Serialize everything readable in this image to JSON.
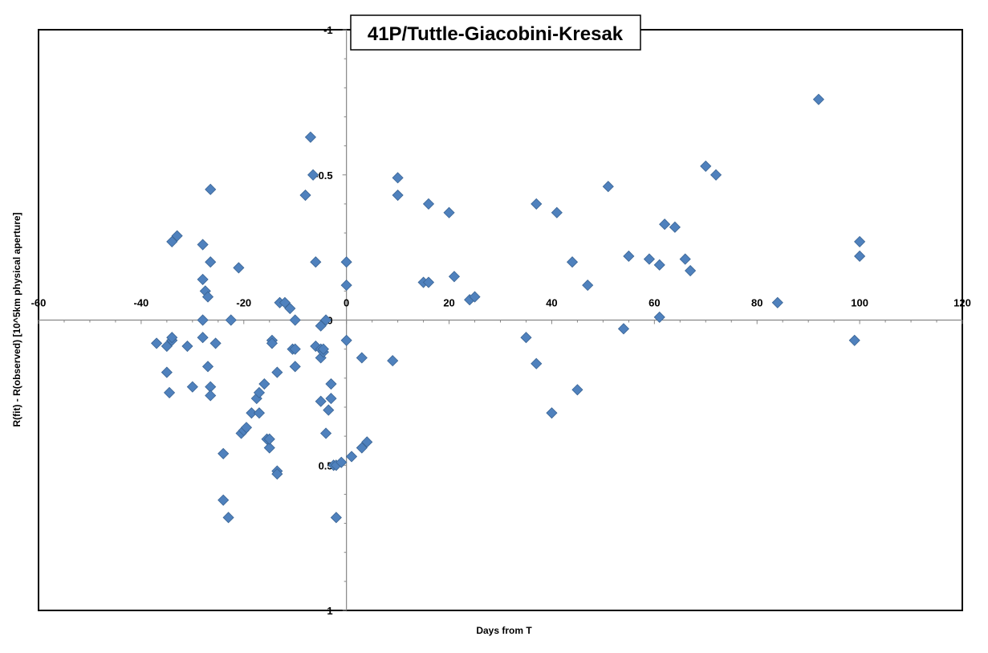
{
  "chart_data": {
    "type": "scatter",
    "title": "41P/Tuttle-Giacobini-Kresak",
    "xlabel": "Days from T",
    "ylabel": "R(fit) - R(observed) [10^5km physical aperture]",
    "xlim": [
      -60,
      120
    ],
    "ylim": [
      -1,
      1
    ],
    "y_inverted": true,
    "x_ticks": [
      -60,
      -40,
      -20,
      0,
      20,
      40,
      60,
      80,
      100,
      120
    ],
    "x_tick_labels": [
      "-60",
      "-40",
      "-20",
      "0",
      "20",
      "40",
      "60",
      "80",
      "100",
      "120"
    ],
    "y_ticks": [
      -1,
      -0.5,
      0,
      0.5,
      1
    ],
    "y_tick_labels": [
      "-1",
      "-0.5",
      "0",
      "0.5",
      "1"
    ],
    "grid": false,
    "legend": "none",
    "marker": "diamond",
    "colors": {
      "marker": "#4f81bd",
      "marker_edge": "#3a6494",
      "axis": "#868686",
      "border": "#000000"
    },
    "series": [
      {
        "x": [
          -37,
          -35,
          -34.5,
          -34,
          -33,
          -34,
          -35,
          -34,
          -31,
          -30,
          -28,
          -28,
          -27.5,
          -27,
          -26.5,
          -26.5,
          -26.5,
          -26.5,
          -28,
          -28,
          -27,
          -25.5,
          -24,
          -21,
          -24,
          -23,
          -22.5,
          -20.5,
          -20,
          -19.5,
          -18.5,
          -17.5,
          -17,
          -17,
          -16,
          -15.5,
          -15,
          -15,
          -14.5,
          -14.5,
          -13.5,
          -13.5,
          -13.5,
          -13,
          -12,
          -11,
          -10.5,
          -10,
          -10,
          -10,
          -8,
          -7,
          -6.5,
          -6,
          -6,
          -5,
          -5,
          -5,
          -5,
          -4.5,
          -4.5,
          -4,
          -4,
          -3.5,
          -3,
          -3,
          -2.5,
          -2,
          -2,
          -1,
          0,
          0,
          0,
          1,
          3,
          3,
          4,
          9,
          10,
          10,
          15,
          16,
          16,
          20,
          21,
          24,
          25,
          35,
          37,
          37,
          40,
          41,
          44,
          45,
          47,
          51,
          54,
          55,
          59,
          61,
          61,
          62,
          64,
          66,
          67,
          70,
          72,
          84,
          92,
          99,
          100,
          100
        ],
        "y": [
          0.08,
          0.18,
          0.25,
          0.07,
          -0.29,
          -0.27,
          0.09,
          0.06,
          0.09,
          0.23,
          -0.26,
          0.06,
          -0.1,
          -0.08,
          -0.45,
          -0.2,
          0.23,
          0.26,
          -0.14,
          0,
          0.16,
          0.08,
          0.46,
          -0.18,
          0.62,
          0.68,
          0,
          0.39,
          0.38,
          0.37,
          0.32,
          0.27,
          0.25,
          0.32,
          0.22,
          0.41,
          0.44,
          0.41,
          0.07,
          0.08,
          0.18,
          0.52,
          0.53,
          -0.06,
          -0.06,
          -0.04,
          0.1,
          0,
          0.1,
          0.16,
          -0.43,
          -0.63,
          -0.5,
          -0.2,
          0.09,
          0.02,
          0.1,
          0.13,
          0.28,
          0.11,
          0.1,
          0.39,
          0,
          0.31,
          0.27,
          0.22,
          0.5,
          0.68,
          0.5,
          0.49,
          -0.2,
          -0.12,
          0.07,
          0.47,
          0.13,
          0.44,
          0.42,
          0.14,
          -0.49,
          -0.43,
          -0.13,
          -0.4,
          -0.13,
          -0.37,
          -0.15,
          -0.07,
          -0.08,
          0.06,
          -0.4,
          0.15,
          0.32,
          -0.37,
          -0.2,
          0.24,
          -0.12,
          -0.46,
          0.03,
          -0.22,
          -0.21,
          -0.19,
          -0.01,
          -0.33,
          -0.32,
          -0.21,
          -0.17,
          -0.53,
          -0.5,
          -0.06,
          -0.76,
          0.07,
          -0.27,
          -0.22
        ]
      }
    ]
  }
}
